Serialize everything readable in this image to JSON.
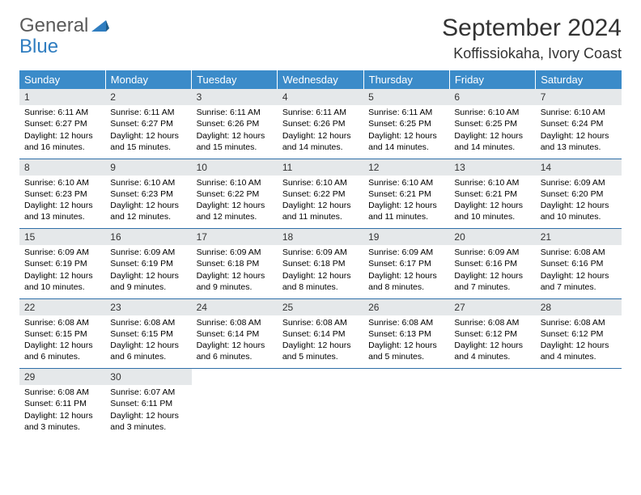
{
  "logo": {
    "part1": "General",
    "part2": "Blue"
  },
  "title": "September 2024",
  "location": "Koffissiokaha, Ivory Coast",
  "colors": {
    "header_bg": "#3b8bc9",
    "header_text": "#ffffff",
    "daynum_bg": "#e5e8ea",
    "sep": "#2f6fa8",
    "logo_gray": "#5a5a5a",
    "logo_blue": "#2f7dc0"
  },
  "day_names": [
    "Sunday",
    "Monday",
    "Tuesday",
    "Wednesday",
    "Thursday",
    "Friday",
    "Saturday"
  ],
  "weeks": [
    [
      {
        "n": "1",
        "sr": "6:11 AM",
        "ss": "6:27 PM",
        "dl": "12 hours and 16 minutes."
      },
      {
        "n": "2",
        "sr": "6:11 AM",
        "ss": "6:27 PM",
        "dl": "12 hours and 15 minutes."
      },
      {
        "n": "3",
        "sr": "6:11 AM",
        "ss": "6:26 PM",
        "dl": "12 hours and 15 minutes."
      },
      {
        "n": "4",
        "sr": "6:11 AM",
        "ss": "6:26 PM",
        "dl": "12 hours and 14 minutes."
      },
      {
        "n": "5",
        "sr": "6:11 AM",
        "ss": "6:25 PM",
        "dl": "12 hours and 14 minutes."
      },
      {
        "n": "6",
        "sr": "6:10 AM",
        "ss": "6:25 PM",
        "dl": "12 hours and 14 minutes."
      },
      {
        "n": "7",
        "sr": "6:10 AM",
        "ss": "6:24 PM",
        "dl": "12 hours and 13 minutes."
      }
    ],
    [
      {
        "n": "8",
        "sr": "6:10 AM",
        "ss": "6:23 PM",
        "dl": "12 hours and 13 minutes."
      },
      {
        "n": "9",
        "sr": "6:10 AM",
        "ss": "6:23 PM",
        "dl": "12 hours and 12 minutes."
      },
      {
        "n": "10",
        "sr": "6:10 AM",
        "ss": "6:22 PM",
        "dl": "12 hours and 12 minutes."
      },
      {
        "n": "11",
        "sr": "6:10 AM",
        "ss": "6:22 PM",
        "dl": "12 hours and 11 minutes."
      },
      {
        "n": "12",
        "sr": "6:10 AM",
        "ss": "6:21 PM",
        "dl": "12 hours and 11 minutes."
      },
      {
        "n": "13",
        "sr": "6:10 AM",
        "ss": "6:21 PM",
        "dl": "12 hours and 10 minutes."
      },
      {
        "n": "14",
        "sr": "6:09 AM",
        "ss": "6:20 PM",
        "dl": "12 hours and 10 minutes."
      }
    ],
    [
      {
        "n": "15",
        "sr": "6:09 AM",
        "ss": "6:19 PM",
        "dl": "12 hours and 10 minutes."
      },
      {
        "n": "16",
        "sr": "6:09 AM",
        "ss": "6:19 PM",
        "dl": "12 hours and 9 minutes."
      },
      {
        "n": "17",
        "sr": "6:09 AM",
        "ss": "6:18 PM",
        "dl": "12 hours and 9 minutes."
      },
      {
        "n": "18",
        "sr": "6:09 AM",
        "ss": "6:18 PM",
        "dl": "12 hours and 8 minutes."
      },
      {
        "n": "19",
        "sr": "6:09 AM",
        "ss": "6:17 PM",
        "dl": "12 hours and 8 minutes."
      },
      {
        "n": "20",
        "sr": "6:09 AM",
        "ss": "6:16 PM",
        "dl": "12 hours and 7 minutes."
      },
      {
        "n": "21",
        "sr": "6:08 AM",
        "ss": "6:16 PM",
        "dl": "12 hours and 7 minutes."
      }
    ],
    [
      {
        "n": "22",
        "sr": "6:08 AM",
        "ss": "6:15 PM",
        "dl": "12 hours and 6 minutes."
      },
      {
        "n": "23",
        "sr": "6:08 AM",
        "ss": "6:15 PM",
        "dl": "12 hours and 6 minutes."
      },
      {
        "n": "24",
        "sr": "6:08 AM",
        "ss": "6:14 PM",
        "dl": "12 hours and 6 minutes."
      },
      {
        "n": "25",
        "sr": "6:08 AM",
        "ss": "6:14 PM",
        "dl": "12 hours and 5 minutes."
      },
      {
        "n": "26",
        "sr": "6:08 AM",
        "ss": "6:13 PM",
        "dl": "12 hours and 5 minutes."
      },
      {
        "n": "27",
        "sr": "6:08 AM",
        "ss": "6:12 PM",
        "dl": "12 hours and 4 minutes."
      },
      {
        "n": "28",
        "sr": "6:08 AM",
        "ss": "6:12 PM",
        "dl": "12 hours and 4 minutes."
      }
    ],
    [
      {
        "n": "29",
        "sr": "6:08 AM",
        "ss": "6:11 PM",
        "dl": "12 hours and 3 minutes."
      },
      {
        "n": "30",
        "sr": "6:07 AM",
        "ss": "6:11 PM",
        "dl": "12 hours and 3 minutes."
      },
      null,
      null,
      null,
      null,
      null
    ]
  ],
  "labels": {
    "sunrise": "Sunrise: ",
    "sunset": "Sunset: ",
    "daylight": "Daylight: "
  }
}
